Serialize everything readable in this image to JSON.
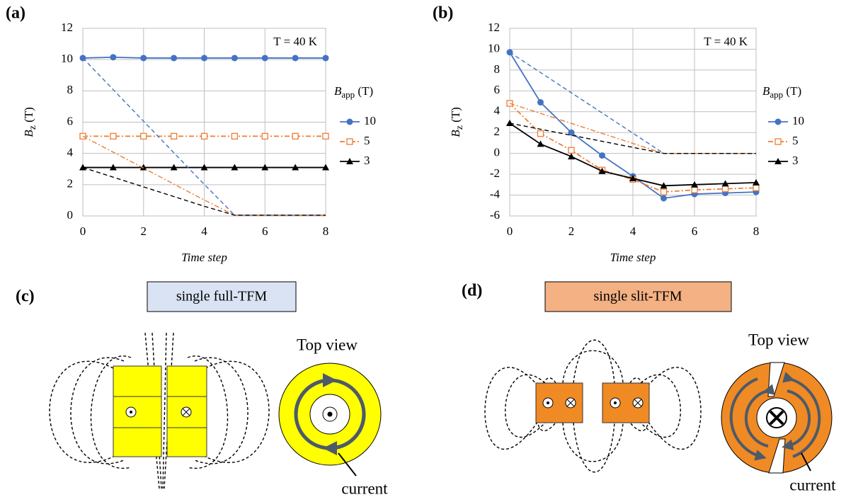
{
  "chart_data": [
    {
      "type": "line",
      "panel_label": "(a)",
      "annotation": "T = 40 K",
      "x_label": "Time step",
      "y_label_symbol": "B",
      "y_label_subscript": "z",
      "y_label_unit": " (T)",
      "legend_title_symbol": "B",
      "legend_title_subscript": "app",
      "legend_title_unit": " (T)",
      "legend": "right",
      "grid": true,
      "x": [
        0,
        1,
        2,
        3,
        4,
        5,
        6,
        7,
        8
      ],
      "xlim": [
        0,
        8
      ],
      "xticks": [
        0,
        2,
        4,
        6,
        8
      ],
      "ylim": [
        0,
        12
      ],
      "yticks": [
        0,
        2,
        4,
        6,
        8,
        10,
        12
      ],
      "series": [
        {
          "name": "10",
          "color": "#4472c4",
          "marker": "circle",
          "dash": "solid",
          "values": [
            10.1,
            10.15,
            10.1,
            10.1,
            10.1,
            10.1,
            10.1,
            10.1,
            10.1
          ]
        },
        {
          "name": "5",
          "color": "#ed7d31",
          "marker": "square",
          "dash": "dashdot",
          "values": [
            5.1,
            5.1,
            5.1,
            5.1,
            5.1,
            5.1,
            5.1,
            5.1,
            5.1
          ]
        },
        {
          "name": "3",
          "color": "#000000",
          "marker": "triangle",
          "dash": "solid",
          "values": [
            3.1,
            3.1,
            3.1,
            3.1,
            3.1,
            3.1,
            3.1,
            3.1,
            3.1
          ]
        },
        {
          "color": "#4472c4",
          "dash": "dashed",
          "values": [
            10.1,
            8.08,
            6.06,
            4.04,
            2.02,
            0.05,
            0.05,
            0.05,
            0.05
          ]
        },
        {
          "color": "#ed7d31",
          "dash": "dashdot",
          "values": [
            5.1,
            4.08,
            3.06,
            2.04,
            1.02,
            0.05,
            0.05,
            0.05,
            0.05
          ]
        },
        {
          "color": "#000000",
          "dash": "dashed",
          "values": [
            3.1,
            2.48,
            1.86,
            1.24,
            0.62,
            0.05,
            0.05,
            0.05,
            0.05
          ]
        }
      ]
    },
    {
      "type": "line",
      "panel_label": "(b)",
      "annotation": "T = 40 K",
      "x_label": "Time step",
      "y_label_symbol": "B",
      "y_label_subscript": "z",
      "y_label_unit": " (T)",
      "legend_title_symbol": "B",
      "legend_title_subscript": "app",
      "legend_title_unit": " (T)",
      "legend": "right",
      "grid": true,
      "x": [
        0,
        1,
        2,
        3,
        4,
        5,
        6,
        7,
        8
      ],
      "xlim": [
        0,
        8
      ],
      "xticks": [
        0,
        2,
        4,
        6,
        8
      ],
      "ylim": [
        -6,
        12
      ],
      "yticks": [
        -6,
        -4,
        -2,
        0,
        2,
        4,
        6,
        8,
        10,
        12
      ],
      "series": [
        {
          "name": "10",
          "color": "#4472c4",
          "marker": "circle",
          "dash": "solid",
          "values": [
            9.7,
            4.9,
            2.0,
            -0.2,
            -2.2,
            -4.3,
            -3.9,
            -3.8,
            -3.7
          ]
        },
        {
          "name": "5",
          "color": "#ed7d31",
          "marker": "square",
          "dash": "dashdot",
          "values": [
            4.8,
            1.9,
            0.3,
            -1.6,
            -2.5,
            -3.7,
            -3.5,
            -3.4,
            -3.3
          ]
        },
        {
          "name": "3",
          "color": "#000000",
          "marker": "triangle",
          "dash": "solid",
          "values": [
            2.9,
            0.9,
            -0.3,
            -1.7,
            -2.4,
            -3.1,
            -3.0,
            -2.9,
            -2.8
          ]
        },
        {
          "color": "#4472c4",
          "dash": "dashed",
          "values": [
            9.7,
            7.76,
            5.82,
            3.88,
            1.94,
            0,
            0,
            0,
            0
          ]
        },
        {
          "color": "#ed7d31",
          "dash": "dashdot",
          "values": [
            4.8,
            3.84,
            2.88,
            1.92,
            0.96,
            0,
            0,
            0,
            0
          ]
        },
        {
          "color": "#000000",
          "dash": "dashed",
          "values": [
            2.9,
            2.32,
            1.74,
            1.16,
            0.58,
            0,
            0,
            0,
            0
          ]
        }
      ]
    }
  ],
  "diagrams": [
    {
      "panel_label": "(c)",
      "title": "single full-TFM",
      "view_label": "Top view",
      "callout": "current"
    },
    {
      "panel_label": "(d)",
      "title": "single slit-TFM",
      "view_label": "Top view",
      "callout": "current"
    }
  ]
}
